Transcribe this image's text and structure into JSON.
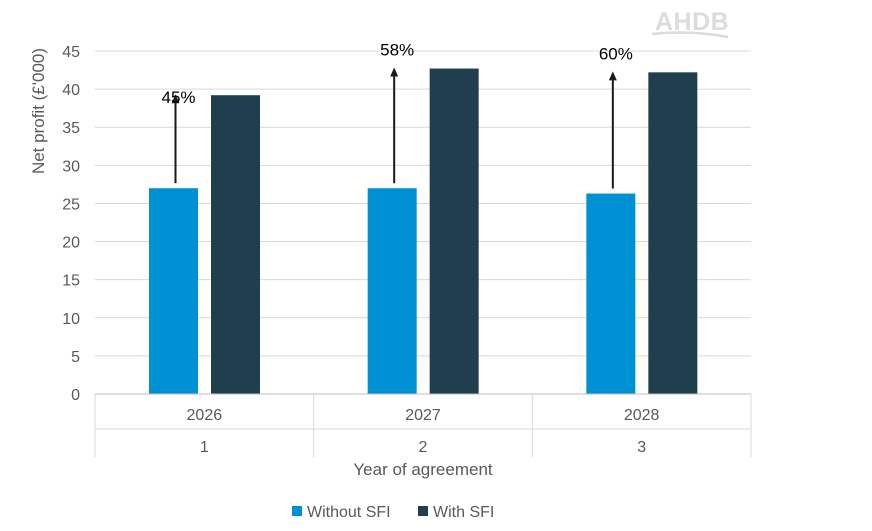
{
  "logo": {
    "text": "AHDB"
  },
  "chart_data": {
    "type": "bar",
    "categories": [
      "2026",
      "2027",
      "2028"
    ],
    "subcategories": [
      "1",
      "2",
      "3"
    ],
    "series": [
      {
        "name": "Without SFI",
        "color": "#0090d4",
        "values": [
          27,
          27,
          26.3
        ]
      },
      {
        "name": "With SFI",
        "color": "#1f3f4f",
        "values": [
          39.2,
          42.7,
          42.2
        ]
      }
    ],
    "annotations": [
      "45%",
      "58%",
      "60%"
    ],
    "title": "",
    "xlabel": "Year of agreement",
    "ylabel": "Net profit (£'000)",
    "ylim": [
      0,
      45
    ],
    "yticks": [
      0,
      5,
      10,
      15,
      20,
      25,
      30,
      35,
      40,
      45
    ],
    "grid": true,
    "legend": "bottom"
  }
}
